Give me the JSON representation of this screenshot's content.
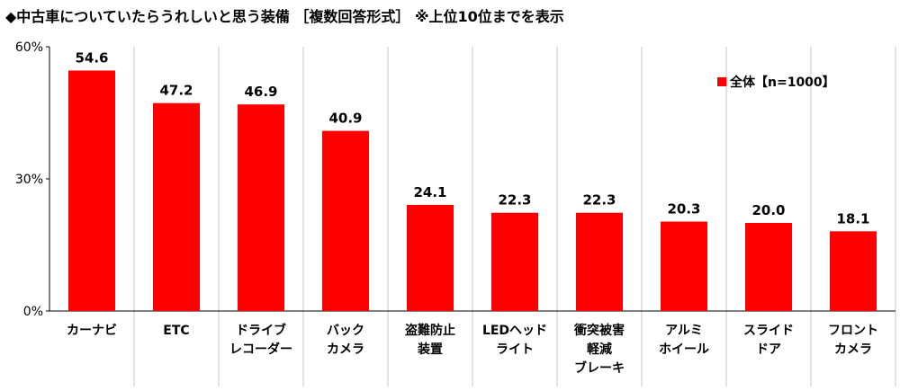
{
  "title": "◆中古車についていたらうれしいと思う装備 ［複数回答形式］ ※上位10位までを表示",
  "colors": {
    "bar": "#ff0000",
    "grid": "#c8c8c8",
    "axis": "#000000"
  },
  "chart_data": {
    "type": "bar",
    "categories": [
      "カーナビ",
      "ETC",
      "ドライブ\nレコーダー",
      "バック\nカメラ",
      "盗難防止\n装置",
      "LEDヘッド\nライト",
      "衝突被害\n軽減\nブレーキ",
      "アルミ\nホイール",
      "スライド\nドア",
      "フロント\nカメラ"
    ],
    "series": [
      {
        "name": "全体【n=1000】",
        "values": [
          54.6,
          47.2,
          46.9,
          40.9,
          24.1,
          22.3,
          22.3,
          20.3,
          20.0,
          18.1
        ]
      }
    ],
    "data_labels": [
      "54.6",
      "47.2",
      "46.9",
      "40.9",
      "24.1",
      "22.3",
      "22.3",
      "20.3",
      "20.0",
      "18.1"
    ],
    "yticks": [
      "0%",
      "30%",
      "60%"
    ],
    "ylim": [
      0,
      60
    ],
    "legend_position": "top-right",
    "grid": "vertical category separators"
  }
}
